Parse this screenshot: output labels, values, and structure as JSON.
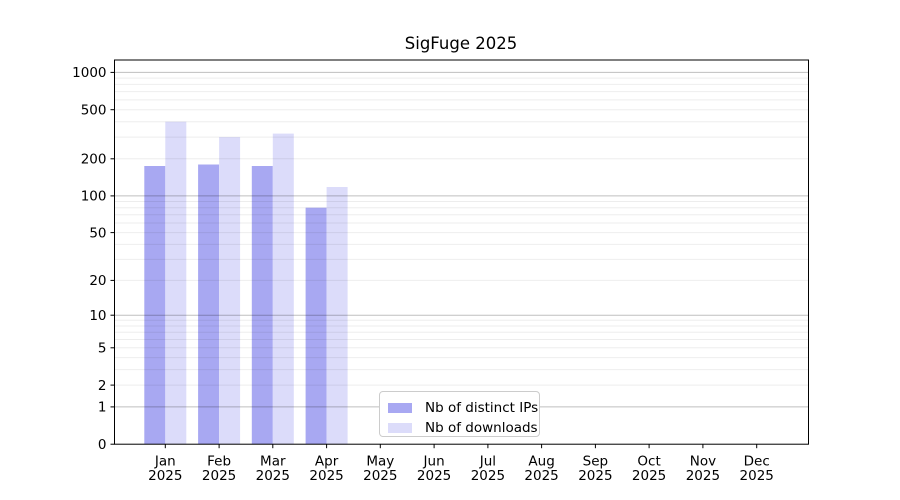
{
  "chart_data": {
    "type": "bar",
    "title": "SigFuge 2025",
    "categories": [
      "Jan",
      "Feb",
      "Mar",
      "Apr",
      "May",
      "Jun",
      "Jul",
      "Aug",
      "Sep",
      "Oct",
      "Nov",
      "Dec"
    ],
    "x_tick_second_line": "2025",
    "series": [
      {
        "name": "Nb of distinct IPs",
        "color": "#a8a8f2",
        "values": [
          175,
          180,
          175,
          80,
          0,
          0,
          0,
          0,
          0,
          0,
          0,
          0
        ]
      },
      {
        "name": "Nb of downloads",
        "color": "#dcdcfa",
        "values": [
          400,
          300,
          320,
          118,
          0,
          0,
          0,
          0,
          0,
          0,
          0,
          0
        ]
      }
    ],
    "y_scale": "log1p",
    "y_tick_values": [
      0,
      1,
      2,
      5,
      10,
      20,
      50,
      100,
      200,
      500,
      1000
    ],
    "y_tick_labels": [
      "0",
      "1",
      "2",
      "5",
      "10",
      "20",
      "50",
      "100",
      "200",
      "500",
      "1000"
    ],
    "ylim": [
      0,
      1260
    ],
    "grid": "horizontal, minor light gray + darker major at 1/10/100/1000, drawn over bars",
    "legend_position": "inside plot, lower middle",
    "colors": {
      "axis": "#000000",
      "background": "#ffffff"
    }
  }
}
